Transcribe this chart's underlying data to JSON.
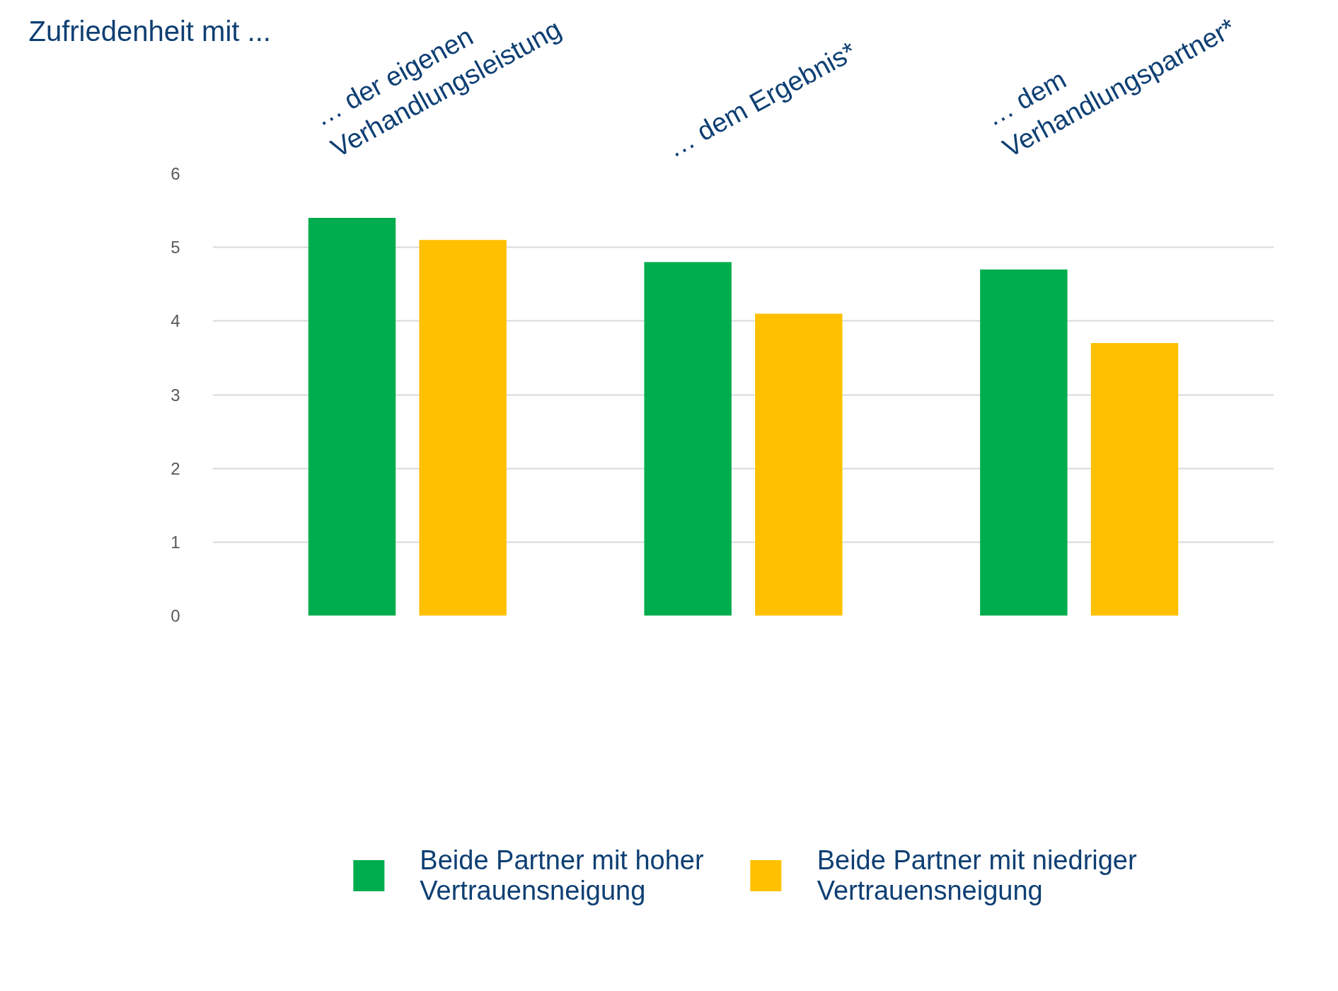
{
  "chart_data": {
    "type": "bar",
    "title": "Zufriedenheit mit ...",
    "categories": [
      "… der eigenen\nVerhandlungsleistung",
      "… dem Ergebnis*",
      "… dem\nVerhandlungspartner*"
    ],
    "series": [
      {
        "name": "Beide Partner mit hoher\nVertrauensneigung",
        "color": "#00ad4e",
        "values": [
          5.4,
          4.8,
          4.7
        ]
      },
      {
        "name": "Beide Partner mit niedriger\nVertrauensneigung",
        "color": "#ffc000",
        "values": [
          5.1,
          4.1,
          3.7
        ]
      }
    ],
    "ylim": [
      0,
      6
    ],
    "yticks": [
      0,
      1,
      2,
      3,
      4,
      5,
      6
    ],
    "grid": "y",
    "legend": "bottom"
  }
}
